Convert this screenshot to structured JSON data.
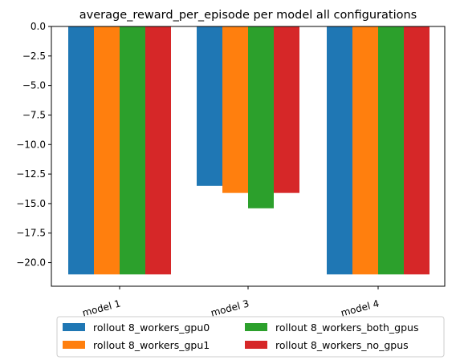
{
  "chart_data": {
    "type": "bar",
    "title": "average_reward_per_episode per model all configurations",
    "xlabel": "",
    "ylabel": "",
    "categories": [
      "model 1",
      "model 3",
      "model 4"
    ],
    "ylim": [
      -22,
      0
    ],
    "yticks": [
      0.0,
      -2.5,
      -5.0,
      -7.5,
      -10.0,
      -12.5,
      -15.0,
      -17.5,
      -20.0
    ],
    "ytick_labels": [
      "0.0",
      "−2.5",
      "−5.0",
      "−7.5",
      "−10.0",
      "−12.5",
      "−15.0",
      "−17.5",
      "−20.0"
    ],
    "grid": false,
    "legend_position": "bottom-center",
    "series": [
      {
        "name": "rollout 8_workers_gpu0",
        "color": "#1f77b4",
        "values": [
          -21.0,
          -13.5,
          -21.0
        ]
      },
      {
        "name": "rollout 8_workers_gpu1",
        "color": "#ff7f0e",
        "values": [
          -21.0,
          -14.1,
          -21.0
        ]
      },
      {
        "name": "rollout 8_workers_both_gpus",
        "color": "#2ca02c",
        "values": [
          -21.0,
          -15.4,
          -21.0
        ]
      },
      {
        "name": "rollout 8_workers_no_gpus",
        "color": "#d62728",
        "values": [
          -21.0,
          -14.1,
          -21.0
        ]
      }
    ]
  }
}
